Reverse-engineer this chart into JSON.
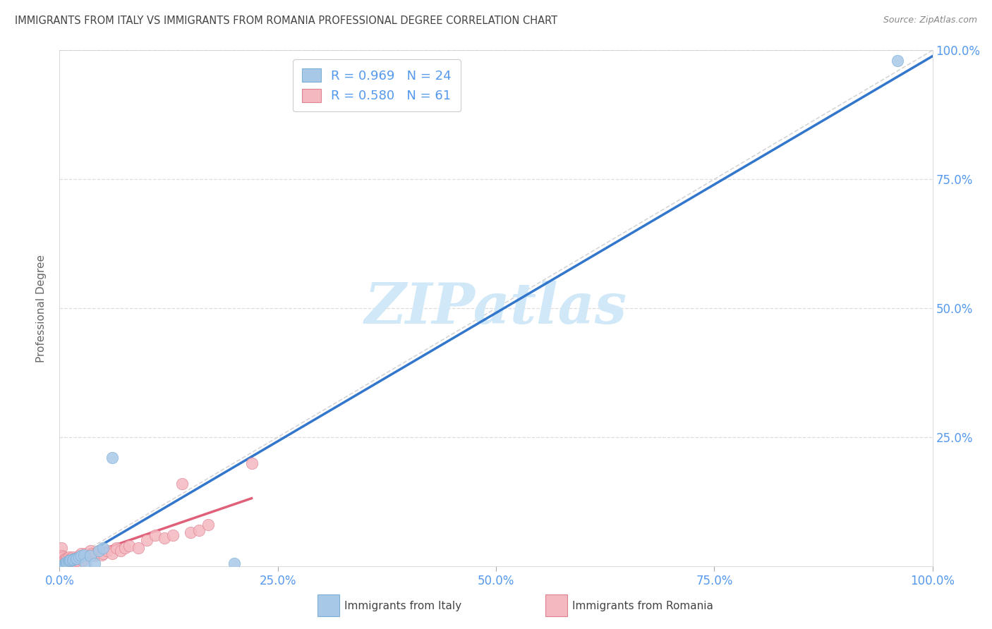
{
  "title": "IMMIGRANTS FROM ITALY VS IMMIGRANTS FROM ROMANIA PROFESSIONAL DEGREE CORRELATION CHART",
  "source": "Source: ZipAtlas.com",
  "ylabel": "Professional Degree",
  "xlabel": "",
  "xlim": [
    0,
    1.0
  ],
  "ylim": [
    0,
    1.0
  ],
  "xtick_labels": [
    "0.0%",
    "25.0%",
    "50.0%",
    "75.0%",
    "100.0%"
  ],
  "xtick_positions": [
    0.0,
    0.25,
    0.5,
    0.75,
    1.0
  ],
  "ytick_labels": [
    "25.0%",
    "50.0%",
    "75.0%",
    "100.0%"
  ],
  "ytick_positions": [
    0.25,
    0.5,
    0.75,
    1.0
  ],
  "italy_color": "#a8c8e8",
  "italy_edge_color": "#7bafd4",
  "romania_color": "#f4b8c0",
  "romania_edge_color": "#e08090",
  "italy_R": "0.969",
  "italy_N": "24",
  "romania_R": "0.580",
  "romania_N": "61",
  "italy_scatter_x": [
    0.004,
    0.006,
    0.007,
    0.008,
    0.009,
    0.01,
    0.011,
    0.012,
    0.013,
    0.015,
    0.016,
    0.018,
    0.02,
    0.022,
    0.025,
    0.028,
    0.03,
    0.035,
    0.04,
    0.045,
    0.05,
    0.06,
    0.2,
    0.96
  ],
  "italy_scatter_y": [
    0.002,
    0.004,
    0.006,
    0.008,
    0.006,
    0.008,
    0.01,
    0.01,
    0.012,
    0.012,
    0.014,
    0.015,
    0.015,
    0.018,
    0.02,
    0.022,
    0.005,
    0.02,
    0.005,
    0.03,
    0.035,
    0.21,
    0.005,
    0.98
  ],
  "romania_scatter_x": [
    0.002,
    0.003,
    0.003,
    0.004,
    0.004,
    0.005,
    0.005,
    0.006,
    0.006,
    0.007,
    0.007,
    0.007,
    0.008,
    0.008,
    0.009,
    0.009,
    0.01,
    0.01,
    0.011,
    0.011,
    0.012,
    0.012,
    0.013,
    0.014,
    0.015,
    0.015,
    0.016,
    0.017,
    0.018,
    0.019,
    0.02,
    0.022,
    0.023,
    0.025,
    0.026,
    0.028,
    0.03,
    0.032,
    0.035,
    0.038,
    0.04,
    0.042,
    0.045,
    0.048,
    0.05,
    0.055,
    0.06,
    0.065,
    0.07,
    0.075,
    0.08,
    0.09,
    0.1,
    0.11,
    0.12,
    0.13,
    0.14,
    0.15,
    0.16,
    0.17,
    0.22
  ],
  "romania_scatter_y": [
    0.035,
    0.015,
    0.02,
    0.005,
    0.018,
    0.008,
    0.012,
    0.003,
    0.006,
    0.005,
    0.01,
    0.015,
    0.008,
    0.012,
    0.01,
    0.015,
    0.008,
    0.012,
    0.015,
    0.018,
    0.01,
    0.013,
    0.012,
    0.015,
    0.018,
    0.008,
    0.012,
    0.015,
    0.012,
    0.01,
    0.015,
    0.02,
    0.015,
    0.025,
    0.01,
    0.022,
    0.025,
    0.02,
    0.03,
    0.025,
    0.02,
    0.025,
    0.03,
    0.022,
    0.025,
    0.03,
    0.025,
    0.035,
    0.03,
    0.035,
    0.04,
    0.035,
    0.05,
    0.06,
    0.055,
    0.06,
    0.16,
    0.065,
    0.07,
    0.08,
    0.2
  ],
  "diagonal_color": "#cccccc",
  "watermark_color": "#d0e8f8",
  "background_color": "#ffffff",
  "grid_color": "#dddddd",
  "axis_label_color": "#5599ee",
  "title_color": "#444444",
  "legend_text_color": "#333333",
  "legend_num_color": "#5599ee"
}
